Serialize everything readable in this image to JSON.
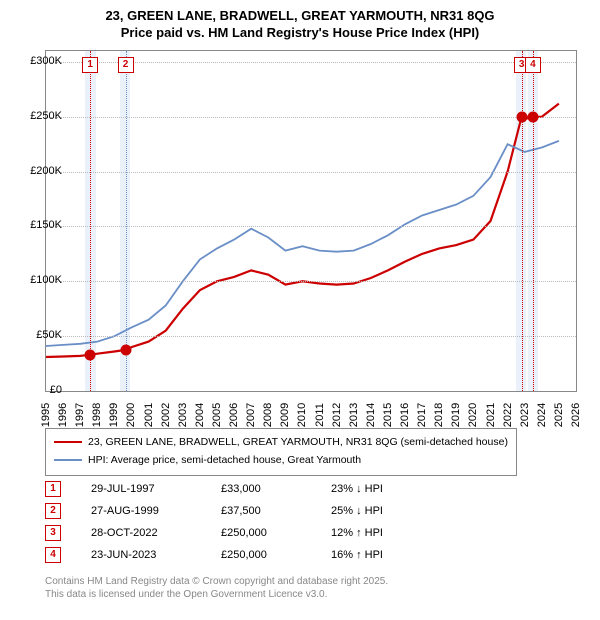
{
  "title_line1": "23, GREEN LANE, BRADWELL, GREAT YARMOUTH, NR31 8QG",
  "title_line2": "Price paid vs. HM Land Registry's House Price Index (HPI)",
  "chart": {
    "type": "line",
    "x_range": [
      1995,
      2026
    ],
    "y_range": [
      0,
      310000
    ],
    "y_ticks": [
      0,
      50000,
      100000,
      150000,
      200000,
      250000,
      300000
    ],
    "y_tick_labels": [
      "£0",
      "£50K",
      "£100K",
      "£150K",
      "£200K",
      "£250K",
      "£300K"
    ],
    "x_ticks": [
      1995,
      1996,
      1997,
      1998,
      1999,
      2000,
      2001,
      2002,
      2003,
      2004,
      2005,
      2006,
      2007,
      2008,
      2009,
      2010,
      2011,
      2012,
      2013,
      2014,
      2015,
      2016,
      2017,
      2018,
      2019,
      2020,
      2021,
      2022,
      2023,
      2024,
      2025,
      2026
    ],
    "grid_color": "#bbbbbb",
    "border_color": "#888888",
    "shade_color": "#eaf1fb",
    "shade_ranges": [
      [
        1997.3,
        1997.9
      ],
      [
        1999.3,
        1999.9
      ],
      [
        2022.5,
        2023.1
      ],
      [
        2023.2,
        2023.8
      ]
    ],
    "series": [
      {
        "name": "price_paid",
        "color": "#cc0000",
        "width": 2.2,
        "points": [
          [
            1995,
            31000
          ],
          [
            1996,
            31500
          ],
          [
            1997,
            32000
          ],
          [
            1997.58,
            33000
          ],
          [
            1998,
            34000
          ],
          [
            1999,
            36000
          ],
          [
            1999.65,
            37500
          ],
          [
            2000,
            40000
          ],
          [
            2001,
            45000
          ],
          [
            2002,
            55000
          ],
          [
            2003,
            75000
          ],
          [
            2004,
            92000
          ],
          [
            2005,
            100000
          ],
          [
            2006,
            104000
          ],
          [
            2007,
            110000
          ],
          [
            2008,
            106000
          ],
          [
            2009,
            97000
          ],
          [
            2010,
            100000
          ],
          [
            2011,
            98000
          ],
          [
            2012,
            97000
          ],
          [
            2013,
            98000
          ],
          [
            2014,
            103000
          ],
          [
            2015,
            110000
          ],
          [
            2016,
            118000
          ],
          [
            2017,
            125000
          ],
          [
            2018,
            130000
          ],
          [
            2019,
            133000
          ],
          [
            2020,
            138000
          ],
          [
            2021,
            155000
          ],
          [
            2022,
            200000
          ],
          [
            2022.82,
            250000
          ],
          [
            2023,
            248000
          ],
          [
            2023.48,
            250000
          ],
          [
            2024,
            250000
          ],
          [
            2025,
            262000
          ]
        ],
        "markers": [
          [
            1997.58,
            33000
          ],
          [
            1999.65,
            37500
          ],
          [
            2022.82,
            250000
          ],
          [
            2023.48,
            250000
          ]
        ]
      },
      {
        "name": "hpi",
        "color": "#6a8fc7",
        "width": 1.8,
        "points": [
          [
            1995,
            41000
          ],
          [
            1996,
            42000
          ],
          [
            1997,
            43000
          ],
          [
            1998,
            45000
          ],
          [
            1999,
            50000
          ],
          [
            2000,
            58000
          ],
          [
            2001,
            65000
          ],
          [
            2002,
            78000
          ],
          [
            2003,
            100000
          ],
          [
            2004,
            120000
          ],
          [
            2005,
            130000
          ],
          [
            2006,
            138000
          ],
          [
            2007,
            148000
          ],
          [
            2008,
            140000
          ],
          [
            2009,
            128000
          ],
          [
            2010,
            132000
          ],
          [
            2011,
            128000
          ],
          [
            2012,
            127000
          ],
          [
            2013,
            128000
          ],
          [
            2014,
            134000
          ],
          [
            2015,
            142000
          ],
          [
            2016,
            152000
          ],
          [
            2017,
            160000
          ],
          [
            2018,
            165000
          ],
          [
            2019,
            170000
          ],
          [
            2020,
            178000
          ],
          [
            2021,
            195000
          ],
          [
            2022,
            225000
          ],
          [
            2023,
            218000
          ],
          [
            2024,
            222000
          ],
          [
            2025,
            228000
          ]
        ]
      }
    ],
    "event_lines": [
      {
        "x": 1997.58,
        "color": "#cc0000",
        "label": "1"
      },
      {
        "x": 1999.65,
        "color": "#6a8fc7",
        "label": "2"
      },
      {
        "x": 2022.82,
        "color": "#cc0000",
        "label": "3"
      },
      {
        "x": 2023.48,
        "color": "#cc0000",
        "label": "4"
      }
    ]
  },
  "legend": {
    "s1_color": "#cc0000",
    "s1_text": "23, GREEN LANE, BRADWELL, GREAT YARMOUTH, NR31 8QG (semi-detached house)",
    "s2_color": "#6a8fc7",
    "s2_text": "HPI: Average price, semi-detached house, Great Yarmouth"
  },
  "table": [
    {
      "n": "1",
      "date": "29-JUL-1997",
      "price": "£33,000",
      "hpi": "23% ↓ HPI"
    },
    {
      "n": "2",
      "date": "27-AUG-1999",
      "price": "£37,500",
      "hpi": "25% ↓ HPI"
    },
    {
      "n": "3",
      "date": "28-OCT-2022",
      "price": "£250,000",
      "hpi": "12% ↑ HPI"
    },
    {
      "n": "4",
      "date": "23-JUN-2023",
      "price": "£250,000",
      "hpi": "16% ↑ HPI"
    }
  ],
  "footer_line1": "Contains HM Land Registry data © Crown copyright and database right 2025.",
  "footer_line2": "This data is licensed under the Open Government Licence v3.0."
}
